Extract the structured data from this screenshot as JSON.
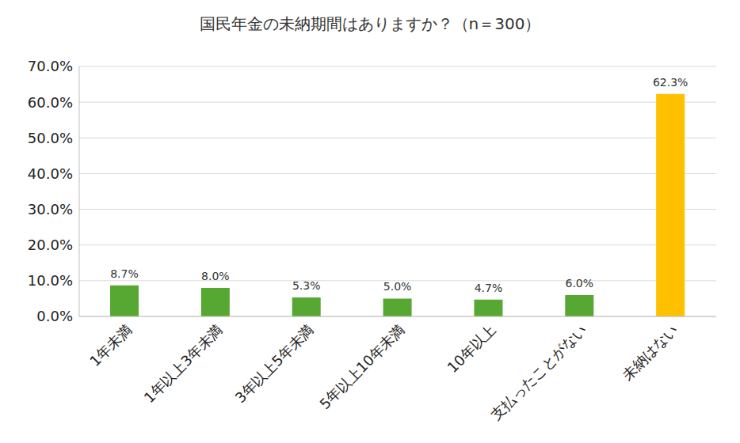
{
  "chart_data": {
    "type": "bar",
    "title": "国民年金の未納期間はありますか？（n＝300）",
    "categories": [
      "1年未満",
      "1年以上3年未満",
      "3年以上5年未満",
      "5年以上10年未満",
      "10年以上",
      "支払ったことがない",
      "未納はない"
    ],
    "values": [
      8.7,
      8.0,
      5.3,
      5.0,
      4.7,
      6.0,
      62.3
    ],
    "value_labels": [
      "8.7%",
      "8.0%",
      "5.3%",
      "5.0%",
      "4.7%",
      "6.0%",
      "62.3%"
    ],
    "colors": [
      "#56a832",
      "#56a832",
      "#56a832",
      "#56a832",
      "#56a832",
      "#56a832",
      "#ffc000"
    ],
    "ylim": [
      0,
      70
    ],
    "yticks": [
      {
        "value": 0,
        "label": "0.0%"
      },
      {
        "value": 10,
        "label": "10.0%"
      },
      {
        "value": 20,
        "label": "20.0%"
      },
      {
        "value": 30,
        "label": "30.0%"
      },
      {
        "value": 40,
        "label": "40.0%"
      },
      {
        "value": 50,
        "label": "50.0%"
      },
      {
        "value": 60,
        "label": "60.0%"
      },
      {
        "value": 70,
        "label": "70.0%"
      }
    ],
    "grid": true,
    "data_labels": true
  }
}
